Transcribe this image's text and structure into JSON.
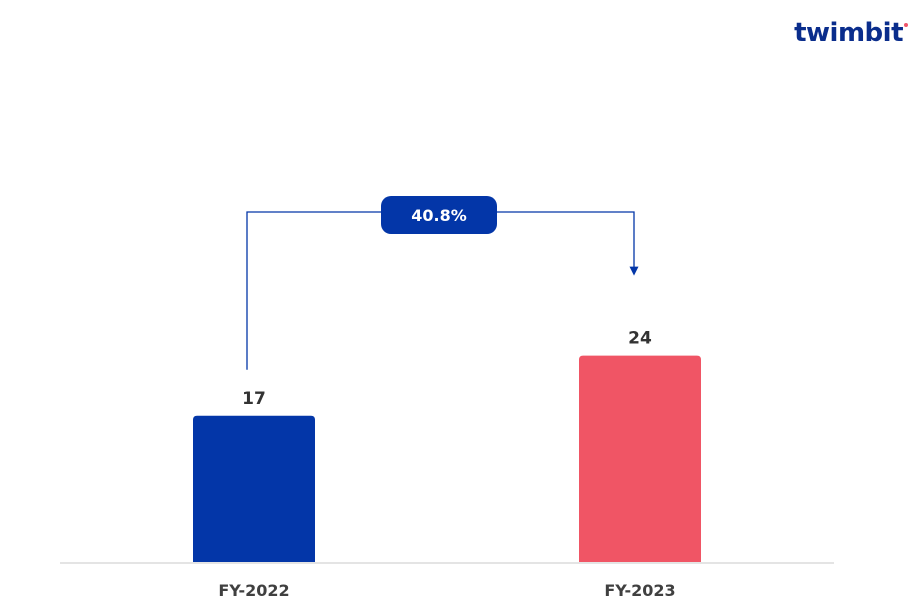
{
  "logo": {
    "text": "twimbit"
  },
  "colors": {
    "bar_fy2022": "#0336a8",
    "bar_fy2023": "#f05565",
    "connector": "#0336a8",
    "badge": "#0336a8",
    "axis": "#c8c8c8",
    "logo_text": "#0a2d8c",
    "logo_dot": "#f0566a"
  },
  "annotation": {
    "growth_label": "40.8%"
  },
  "chart_data": {
    "type": "bar",
    "title": "",
    "xlabel": "",
    "ylabel": "",
    "categories": [
      "FY-2022",
      "FY-2023"
    ],
    "values": [
      17,
      24
    ],
    "data_labels": [
      "17",
      "24"
    ],
    "ylim": [
      0,
      40
    ],
    "grid": false,
    "legend": "none"
  }
}
